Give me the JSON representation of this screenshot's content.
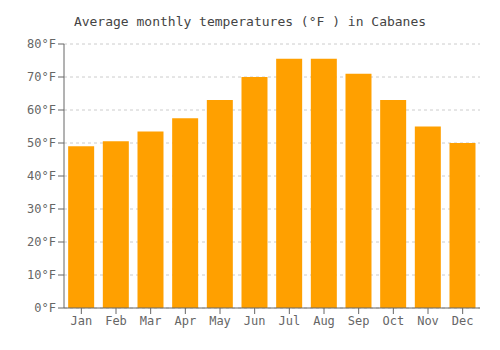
{
  "chart_data": {
    "type": "bar",
    "title": "Average monthly temperatures (°F ) in Cabanes",
    "categories": [
      "Jan",
      "Feb",
      "Mar",
      "Apr",
      "May",
      "Jun",
      "Jul",
      "Aug",
      "Sep",
      "Oct",
      "Nov",
      "Dec"
    ],
    "values": [
      49,
      50.5,
      53.5,
      57.5,
      63,
      70,
      75.5,
      75.5,
      71,
      63,
      55,
      50
    ],
    "color": "#FFA000",
    "ylim": [
      0,
      80
    ],
    "yticks": [
      {
        "value": 0,
        "label": "0°F"
      },
      {
        "value": 10,
        "label": "10°F"
      },
      {
        "value": 20,
        "label": "20°F"
      },
      {
        "value": 30,
        "label": "30°F"
      },
      {
        "value": 40,
        "label": "40°F"
      },
      {
        "value": 50,
        "label": "50°F"
      },
      {
        "value": 60,
        "label": "60°F"
      },
      {
        "value": 70,
        "label": "70°F"
      },
      {
        "value": 80,
        "label": "80°F"
      }
    ],
    "grid": true
  }
}
